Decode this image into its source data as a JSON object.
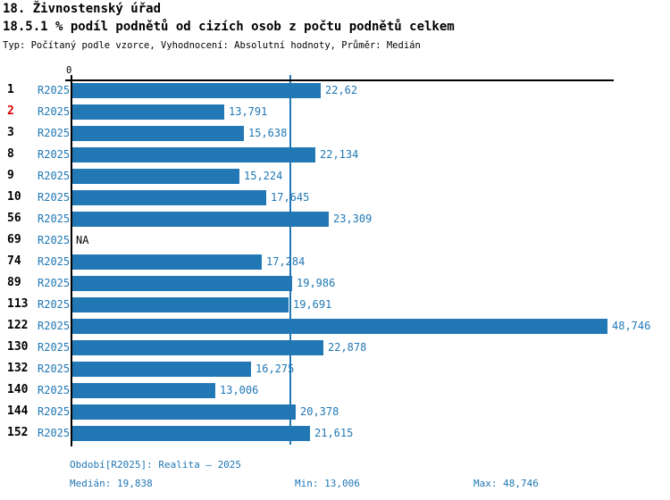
{
  "header": {
    "title": "18. Živnostenský úřad",
    "subtitle": "18.5.1 % podíl podnětů od cizích osob z počtu podnětů celkem",
    "meta": "Typ: Počítaný podle vzorce, Vyhodnocení: Absolutní hodnoty, Průměr: Medián"
  },
  "chart_data": {
    "type": "bar",
    "orientation": "horizontal",
    "series_label": "R2025",
    "axis_zero_label": "0",
    "categories": [
      "1",
      "2",
      "3",
      "8",
      "9",
      "10",
      "56",
      "69",
      "74",
      "89",
      "113",
      "122",
      "130",
      "132",
      "140",
      "144",
      "152"
    ],
    "highlighted_category": "2",
    "values": [
      22.62,
      13.791,
      15.638,
      22.134,
      15.224,
      17.645,
      23.309,
      null,
      17.284,
      19.986,
      19.691,
      48.746,
      22.878,
      16.275,
      13.006,
      20.378,
      21.615
    ],
    "value_labels": [
      "22,62",
      "13,791",
      "15,638",
      "22,134",
      "15,224",
      "17,645",
      "23,309",
      "NA",
      "17,284",
      "19,986",
      "19,691",
      "48,746",
      "22,878",
      "16,275",
      "13,006",
      "20,378",
      "21,615"
    ],
    "median_value": 19.838,
    "xlim": [
      0,
      49.3
    ],
    "grid": false,
    "colors": {
      "bar": "#2277b5",
      "median_line": "#2277b5",
      "series_text": "#1f77b4",
      "value_text": "#1f77b4",
      "category_text": "#000000",
      "highlight_text": "#dd0000",
      "na_text": "#000000",
      "axis": "#000000"
    }
  },
  "footer": {
    "period": "Období[R2025]: Realita – 2025",
    "median": "Medián: 19,838",
    "min": "Min: 13,006",
    "max": "Max: 48,746"
  }
}
